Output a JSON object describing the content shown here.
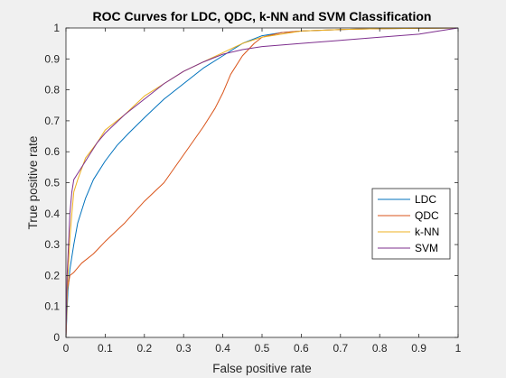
{
  "chart_data": {
    "type": "line",
    "title": "ROC Curves for LDC, QDC, k-NN and SVM Classification",
    "xlabel": "False positive rate",
    "ylabel": "True positive rate",
    "xlim": [
      0,
      1
    ],
    "ylim": [
      0,
      1
    ],
    "xticks": [
      0,
      0.1,
      0.2,
      0.3,
      0.4,
      0.5,
      0.6,
      0.7,
      0.8,
      0.9,
      1
    ],
    "yticks": [
      0,
      0.1,
      0.2,
      0.3,
      0.4,
      0.5,
      0.6,
      0.7,
      0.8,
      0.9,
      1
    ],
    "xtick_labels": [
      "0",
      "0.1",
      "0.2",
      "0.3",
      "0.4",
      "0.5",
      "0.6",
      "0.7",
      "0.8",
      "0.9",
      "1"
    ],
    "ytick_labels": [
      "0",
      "0.1",
      "0.2",
      "0.3",
      "0.4",
      "0.5",
      "0.6",
      "0.7",
      "0.8",
      "0.9",
      "1"
    ],
    "grid": false,
    "legend_position": "right",
    "series": [
      {
        "name": "LDC",
        "color": "#0072BD",
        "x": [
          0,
          0.005,
          0.01,
          0.02,
          0.03,
          0.05,
          0.07,
          0.1,
          0.13,
          0.16,
          0.2,
          0.25,
          0.3,
          0.35,
          0.4,
          0.45,
          0.5,
          0.55,
          0.6,
          0.7,
          0.8,
          0.9,
          1
        ],
        "y": [
          0,
          0.15,
          0.22,
          0.3,
          0.37,
          0.45,
          0.51,
          0.57,
          0.62,
          0.66,
          0.71,
          0.77,
          0.82,
          0.87,
          0.91,
          0.95,
          0.975,
          0.985,
          0.99,
          0.995,
          0.998,
          0.999,
          1
        ]
      },
      {
        "name": "QDC",
        "color": "#D95319",
        "x": [
          0,
          0.003,
          0.01,
          0.02,
          0.04,
          0.07,
          0.1,
          0.15,
          0.2,
          0.25,
          0.3,
          0.35,
          0.38,
          0.4,
          0.42,
          0.45,
          0.48,
          0.5,
          0.55,
          0.6,
          0.7,
          0.8,
          0.9,
          1
        ],
        "y": [
          0,
          0.15,
          0.2,
          0.21,
          0.24,
          0.27,
          0.31,
          0.37,
          0.44,
          0.5,
          0.59,
          0.68,
          0.74,
          0.79,
          0.85,
          0.91,
          0.95,
          0.97,
          0.985,
          0.99,
          0.995,
          0.998,
          0.999,
          1
        ]
      },
      {
        "name": "k-NN",
        "color": "#EDB120",
        "x": [
          0,
          0.005,
          0.01,
          0.015,
          0.02,
          0.03,
          0.05,
          0.08,
          0.1,
          0.15,
          0.2,
          0.25,
          0.3,
          0.35,
          0.4,
          0.45,
          0.5,
          0.6,
          0.7,
          0.8,
          0.9,
          1
        ],
        "y": [
          0,
          0.2,
          0.32,
          0.4,
          0.47,
          0.51,
          0.58,
          0.63,
          0.67,
          0.72,
          0.78,
          0.82,
          0.86,
          0.89,
          0.92,
          0.95,
          0.97,
          0.99,
          0.995,
          0.998,
          0.999,
          1
        ]
      },
      {
        "name": "SVM",
        "color": "#7E2F8E",
        "x": [
          0,
          0.003,
          0.01,
          0.015,
          0.02,
          0.03,
          0.05,
          0.08,
          0.1,
          0.15,
          0.2,
          0.25,
          0.3,
          0.35,
          0.4,
          0.45,
          0.5,
          0.55,
          0.6,
          0.7,
          0.8,
          0.9,
          0.95,
          1
        ],
        "y": [
          0,
          0.2,
          0.4,
          0.47,
          0.51,
          0.53,
          0.57,
          0.63,
          0.66,
          0.72,
          0.77,
          0.82,
          0.86,
          0.89,
          0.915,
          0.93,
          0.94,
          0.945,
          0.95,
          0.96,
          0.97,
          0.98,
          0.99,
          1
        ]
      }
    ]
  }
}
